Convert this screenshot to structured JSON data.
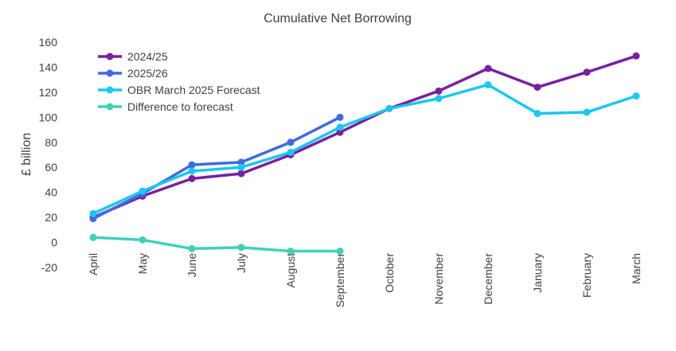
{
  "chart_data": {
    "type": "line",
    "title": "Cumulative Net Borrowing",
    "xlabel": "",
    "ylabel": "£ billion",
    "ylim": [
      -20,
      160
    ],
    "yticks": [
      -20,
      0,
      20,
      40,
      60,
      80,
      100,
      120,
      140,
      160
    ],
    "grid": false,
    "legend_position": "top-left",
    "categories": [
      "April",
      "May",
      "June",
      "July",
      "August",
      "September",
      "October",
      "November",
      "December",
      "January",
      "February",
      "March"
    ],
    "series": [
      {
        "name": "2024/25",
        "color": "#7a1fa2",
        "values": [
          20,
          37,
          51,
          55,
          70,
          88,
          107,
          121,
          139,
          124,
          136,
          149
        ]
      },
      {
        "name": "2025/26",
        "color": "#4169e1",
        "values": [
          19,
          39,
          62,
          64,
          80,
          100,
          null,
          null,
          null,
          null,
          null,
          null
        ]
      },
      {
        "name": "OBR March 2025 Forecast",
        "color": "#19c8f0",
        "values": [
          23,
          41,
          57,
          60,
          72,
          92,
          107,
          115,
          126,
          103,
          104,
          117
        ]
      },
      {
        "name": "Difference to forecast",
        "color": "#3fd1b8",
        "values": [
          4,
          2,
          -5,
          -4,
          -7,
          -7,
          null,
          null,
          null,
          null,
          null,
          null
        ]
      }
    ]
  }
}
